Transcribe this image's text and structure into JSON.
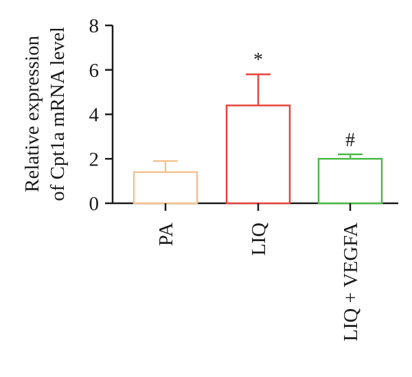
{
  "chart_data": {
    "type": "bar",
    "title": "",
    "ylabel_lines": [
      "Relative expression",
      "of Cpt1a mRNA level"
    ],
    "xlabel": "",
    "categories": [
      "PA",
      "LIQ",
      "LIQ + VEGFA"
    ],
    "values": [
      1.4,
      4.4,
      2.0
    ],
    "error_upper": [
      0.5,
      1.4,
      0.2
    ],
    "significance": [
      "",
      "*",
      "#"
    ],
    "bar_colors": [
      "#f5c291",
      "#e8413c",
      "#4cbb4a"
    ],
    "ylim": [
      0,
      8
    ],
    "yticks": [
      "0",
      "2",
      "4",
      "6",
      "8"
    ],
    "grid": false,
    "legend": "none"
  }
}
